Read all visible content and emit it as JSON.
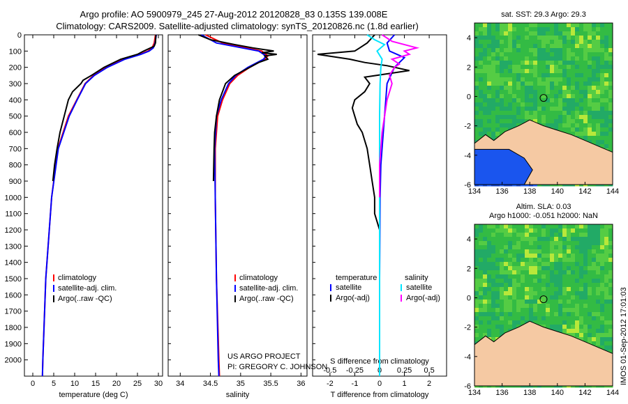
{
  "header": {
    "line1": "Argo profile: AO 5900979_245 27-Aug-2012 20120828_83 0.135S 139.008E",
    "line2": "Climatology: CARS2009. Satellite-adjusted climatology: synTS_20120826.nc (1.8d earlier)"
  },
  "credits": {
    "line1": "US ARGO PROJECT",
    "line2": "PI: GREGORY C. JOHNSON"
  },
  "side_stamp": "IMOS 01-Sep-2012 17:01:03",
  "colors": {
    "climatology": "#ff0000",
    "satellite": "#0000ff",
    "argo": "#000000",
    "satellite_s": "#00e5ff",
    "argo_s": "#ff00ff",
    "land": "#f5c9a3",
    "ocean_high": "#33cc33",
    "ocean_low": "#0044ff"
  },
  "chart_data": [
    {
      "id": "temperature",
      "type": "line",
      "xlabel": "temperature (deg C)",
      "xlim": [
        -2,
        31
      ],
      "xticks": [
        0,
        5,
        10,
        15,
        20,
        25,
        30
      ],
      "ylim": [
        2100,
        0
      ],
      "yticks": [
        0,
        100,
        200,
        300,
        400,
        500,
        600,
        700,
        800,
        900,
        1000,
        1100,
        1200,
        1300,
        1400,
        1500,
        1600,
        1700,
        1800,
        1900,
        2000
      ],
      "legend": [
        "climatology",
        "satellite-adj. clim.",
        "Argo(..raw -QC)"
      ],
      "series": [
        {
          "name": "climatology",
          "color": "red",
          "depth": [
            0,
            50,
            80,
            100,
            120,
            150,
            200,
            250,
            300,
            400,
            500,
            700,
            1000,
            1500,
            2000,
            2100
          ],
          "values": [
            29.3,
            29.0,
            28.5,
            27.5,
            25.5,
            21.5,
            17.5,
            14.5,
            12.5,
            10.5,
            8.5,
            6.0,
            4.5,
            3.1,
            2.4,
            2.3
          ]
        },
        {
          "name": "satellite-adj. clim.",
          "color": "blue",
          "depth": [
            0,
            50,
            80,
            100,
            120,
            150,
            200,
            250,
            300,
            400,
            500,
            700,
            1000,
            1500,
            2000,
            2100
          ],
          "values": [
            29.5,
            29.2,
            28.8,
            27.8,
            25.8,
            22.0,
            17.8,
            14.7,
            12.6,
            10.6,
            8.7,
            6.1,
            4.5,
            3.1,
            2.4,
            2.3
          ]
        },
        {
          "name": "Argo(..raw -QC)",
          "color": "black",
          "depth": [
            0,
            50,
            70,
            100,
            120,
            150,
            200,
            250,
            280,
            300,
            350,
            400,
            500,
            600,
            700,
            800,
            900
          ],
          "values": [
            29.4,
            29.3,
            29.0,
            26.5,
            25.0,
            21.0,
            17.0,
            14.0,
            12.0,
            11.5,
            9.5,
            8.5,
            7.5,
            6.5,
            5.8,
            5.2,
            4.8
          ]
        }
      ]
    },
    {
      "id": "salinity",
      "type": "line",
      "xlabel": "salinity",
      "xlim": [
        33.8,
        36.1
      ],
      "xticks": [
        34,
        34.5,
        35,
        35.5,
        36
      ],
      "ylim": [
        2100,
        0
      ],
      "legend": [
        "climatology",
        "satellite-adj. clim.",
        "Argo(..raw -QC)"
      ],
      "series": [
        {
          "name": "climatology",
          "color": "red",
          "depth": [
            0,
            50,
            100,
            130,
            150,
            200,
            250,
            300,
            400,
            500,
            700,
            1000,
            1500,
            2000,
            2100
          ],
          "values": [
            34.42,
            34.7,
            35.35,
            35.45,
            35.4,
            35.15,
            34.95,
            34.82,
            34.7,
            34.62,
            34.58,
            34.58,
            34.6,
            34.64,
            34.65
          ]
        },
        {
          "name": "satellite-adj. clim.",
          "color": "blue",
          "depth": [
            0,
            50,
            100,
            130,
            150,
            200,
            250,
            300,
            400,
            500,
            700,
            1000,
            1500,
            2000,
            2100
          ],
          "values": [
            34.35,
            34.6,
            35.3,
            35.42,
            35.38,
            35.12,
            34.92,
            34.8,
            34.68,
            34.6,
            34.57,
            34.58,
            34.6,
            34.63,
            34.64
          ]
        },
        {
          "name": "Argo(..raw -QC)",
          "color": "black",
          "depth": [
            0,
            30,
            60,
            80,
            100,
            110,
            120,
            130,
            150,
            170,
            200,
            250,
            300,
            400,
            500,
            600,
            700,
            900
          ],
          "values": [
            34.3,
            34.5,
            34.9,
            35.2,
            35.55,
            35.35,
            35.6,
            35.4,
            35.45,
            35.3,
            35.15,
            34.9,
            34.75,
            34.65,
            34.6,
            34.57,
            34.56,
            34.55
          ]
        }
      ]
    },
    {
      "id": "difference",
      "type": "line",
      "xlabel": "T difference from climatology",
      "xlabel_top": "S difference from climatology",
      "xlim": [
        -2.7,
        2.7
      ],
      "xticks": [
        -2,
        -1,
        0,
        1,
        2
      ],
      "xticks_s": [
        "-0.5",
        "-0.25",
        "0",
        "0.25",
        "0.5"
      ],
      "ylim": [
        2100,
        0
      ],
      "legend_titles": [
        "temperature",
        "salinity"
      ],
      "legend": [
        "satellite",
        "Argo(-adj)",
        "satellite",
        "Argo(-adj)"
      ],
      "series": [
        {
          "name": "satellite",
          "color": "blue",
          "depth": [
            0,
            50,
            100,
            140,
            200,
            300,
            400,
            600,
            800,
            1000,
            1500,
            2100
          ],
          "values": [
            0.6,
            0.3,
            0.4,
            1.0,
            0.6,
            0.3,
            0.25,
            0.15,
            0.05,
            0.02,
            0.0,
            0.0
          ]
        },
        {
          "name": "Argo(-adj)",
          "color": "black",
          "depth": [
            0,
            50,
            80,
            100,
            120,
            150,
            170,
            190,
            220,
            260,
            300,
            350,
            400,
            450,
            500,
            550,
            600,
            700,
            800,
            900,
            1000,
            1100,
            1200
          ],
          "values": [
            -0.2,
            -0.5,
            -0.8,
            -1.0,
            -2.5,
            -1.2,
            -0.6,
            0.3,
            1.2,
            -0.6,
            -0.4,
            -0.6,
            -1.0,
            -1.1,
            -1.0,
            -0.9,
            -0.7,
            -0.5,
            -0.4,
            -0.3,
            -0.2,
            -0.2,
            0.0
          ]
        },
        {
          "name": "satellite",
          "color": "cyan",
          "depth": [
            0,
            30,
            60,
            100,
            150,
            200,
            300,
            500,
            800,
            1200,
            2100
          ],
          "values": [
            -0.5,
            -0.2,
            0.2,
            -0.1,
            0.1,
            0.05,
            0.02,
            0.0,
            0.0,
            0.0,
            0.0
          ]
        },
        {
          "name": "Argo(-adj)",
          "color": "magenta",
          "depth": [
            0,
            40,
            80,
            100,
            120,
            150,
            180,
            200,
            250,
            300,
            400,
            600,
            800,
            1000
          ],
          "values": [
            0.1,
            0.5,
            1.5,
            1.0,
            1.2,
            0.5,
            0.8,
            0.6,
            0.4,
            0.5,
            0.3,
            0.1,
            0.0,
            0.0
          ]
        }
      ]
    },
    {
      "id": "sst-map",
      "type": "heatmap",
      "title": "sat. SST: 29.3 Argo: 29.3",
      "xlim": [
        134,
        144
      ],
      "ylim": [
        -6,
        5
      ],
      "xticks": [
        134,
        136,
        138,
        140,
        142,
        144
      ],
      "yticks": [
        -6,
        -4,
        -2,
        0,
        2,
        4
      ],
      "marker": {
        "lon": 139.0,
        "lat": -0.1
      }
    },
    {
      "id": "sla-map",
      "type": "heatmap",
      "title_line1": "Altim. SLA: 0.03",
      "title_line2": "Argo h1000: -0.051 h2000: NaN",
      "xlim": [
        134,
        144
      ],
      "ylim": [
        -6,
        5
      ],
      "xticks": [
        134,
        136,
        138,
        140,
        142,
        144
      ],
      "yticks": [
        -6,
        -4,
        -2,
        0,
        2,
        4
      ],
      "marker": {
        "lon": 139.0,
        "lat": -0.1
      }
    }
  ]
}
